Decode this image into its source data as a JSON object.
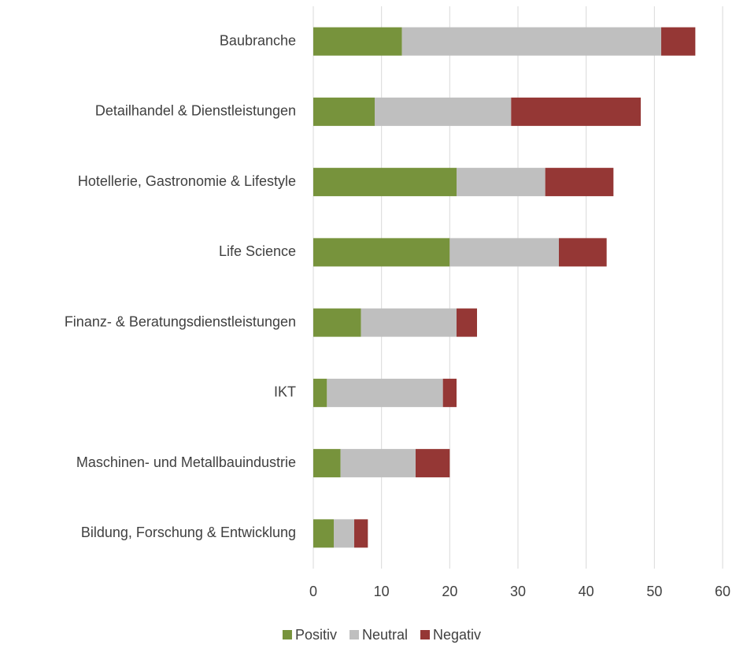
{
  "chart_data": {
    "type": "stacked-barh",
    "categories": [
      "Baubranche",
      "Detailhandel & Dienstleistungen",
      "Hotellerie, Gastronomie & Lifestyle",
      "Life Science",
      "Finanz- & Beratungsdienstleistungen",
      "IKT",
      "Maschinen- und Metallbauindustrie",
      "Bildung, Forschung & Entwicklung"
    ],
    "series": [
      {
        "name": "Positiv",
        "color": "#77933c",
        "values": [
          13,
          9,
          21,
          20,
          7,
          2,
          4,
          3
        ]
      },
      {
        "name": "Neutral",
        "color": "#bfbfbf",
        "values": [
          38,
          20,
          13,
          16,
          14,
          17,
          11,
          3
        ]
      },
      {
        "name": "Negativ",
        "color": "#953735",
        "values": [
          5,
          19,
          10,
          7,
          3,
          2,
          5,
          2
        ]
      }
    ],
    "xlim": [
      0,
      60
    ],
    "xticks": [
      0,
      10,
      20,
      30,
      40,
      50,
      60
    ],
    "grid": true,
    "legend": "bottom"
  }
}
